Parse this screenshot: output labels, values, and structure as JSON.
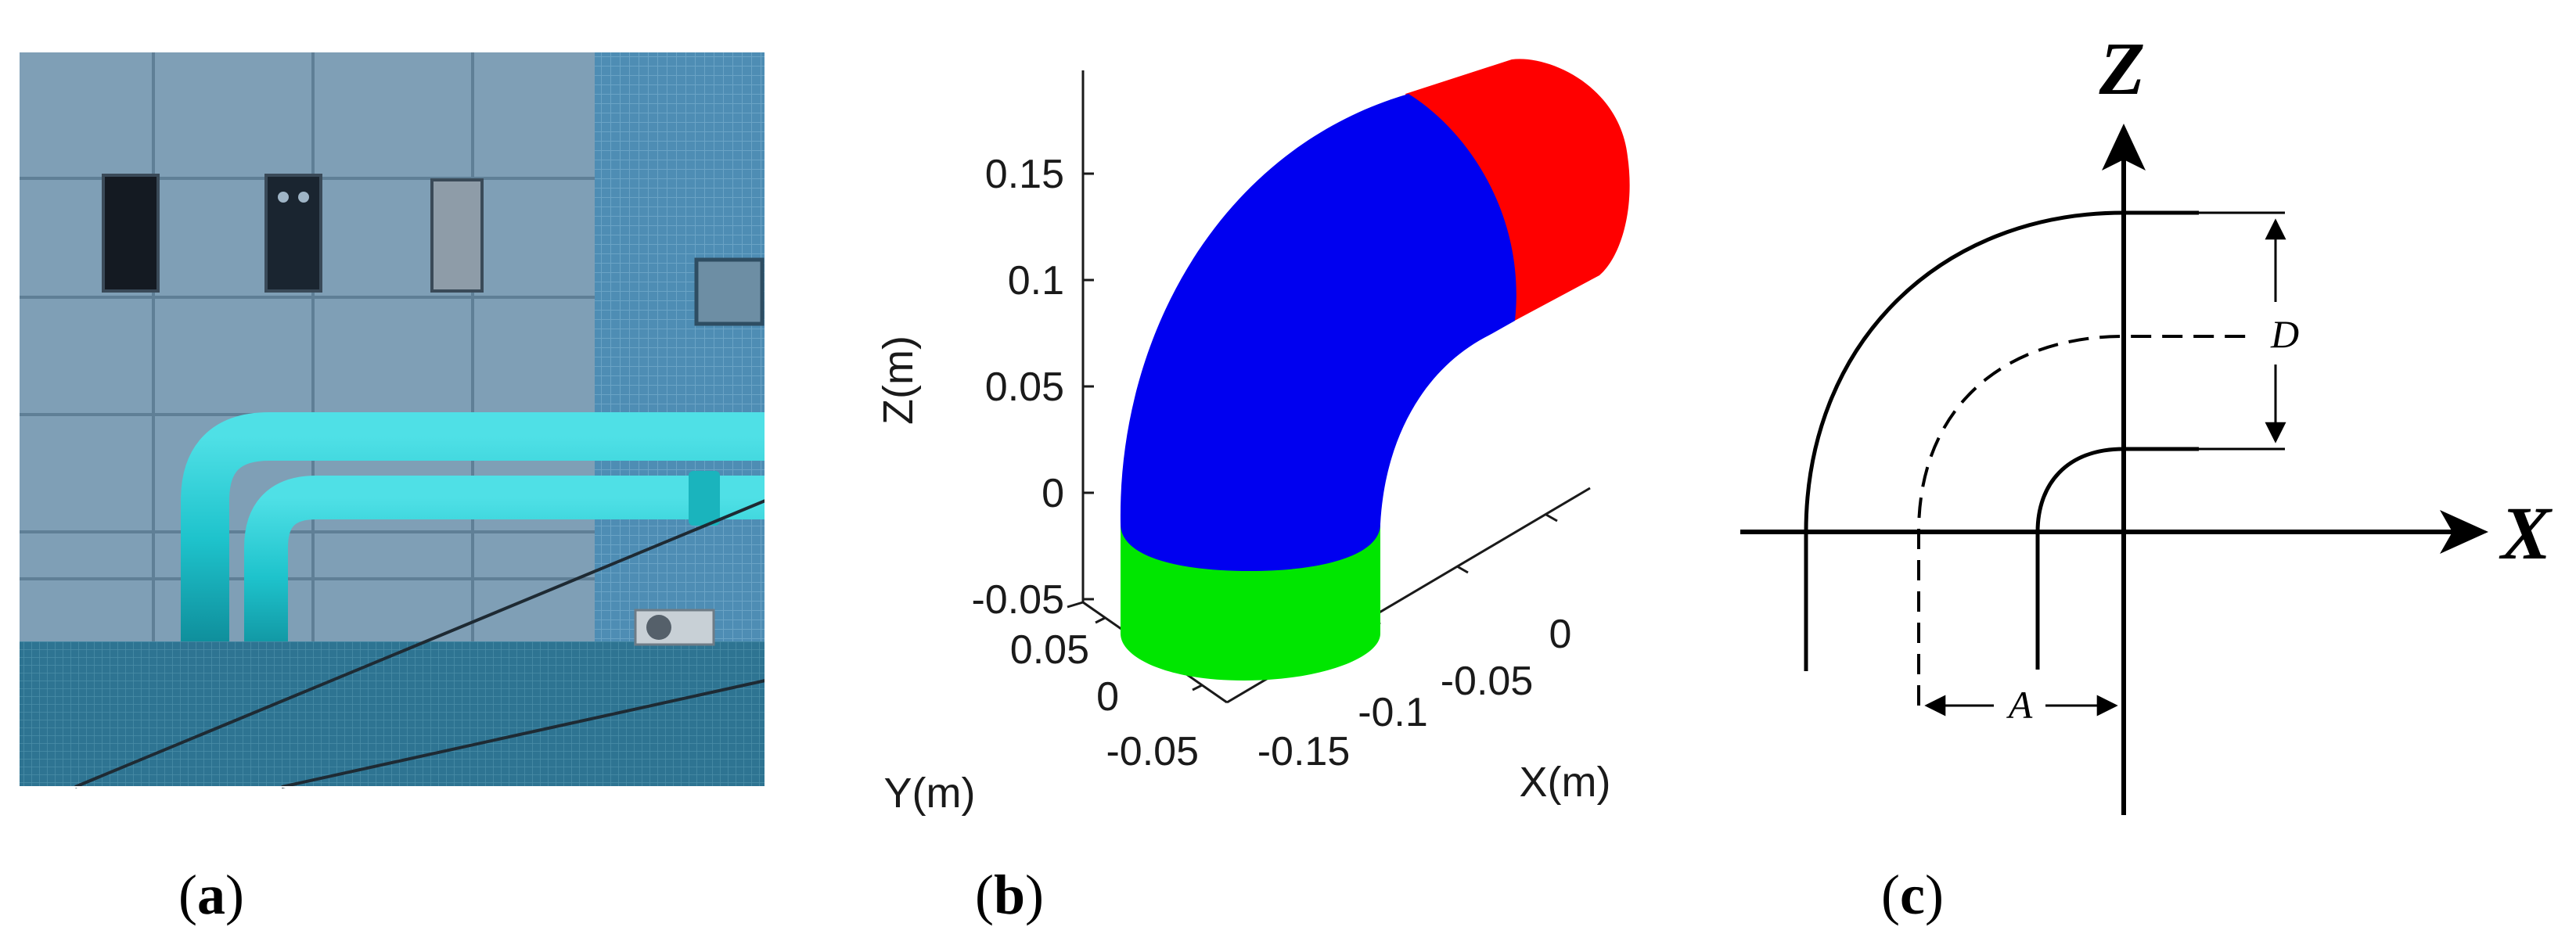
{
  "panels": {
    "a": {
      "label": "a"
    },
    "b": {
      "label": "b",
      "z_ticks": [
        "0.15",
        "0.1",
        "0.05",
        "0",
        "-0.05"
      ],
      "x_ticks": [
        "0",
        "-0.05",
        "-0.1",
        "-0.15"
      ],
      "y_ticks": [
        "0.05",
        "0",
        "-0.05"
      ],
      "z_axis_label": "Z(m)",
      "x_axis_label": "X(m)",
      "y_axis_label": "Y(m)",
      "colors": {
        "straight_in": "#00e600",
        "bend": "#0000f0",
        "straight_out": "#ff0000"
      }
    },
    "c": {
      "label": "c",
      "axis_z": "Z",
      "axis_x": "X",
      "dim_d": "D",
      "dim_a": "A"
    }
  },
  "photo_colors": {
    "wall": "#7f9fb6",
    "tile_wall": "#4f8fb5",
    "pipe": "#1fc3cc",
    "ledge": "#2f7893"
  }
}
